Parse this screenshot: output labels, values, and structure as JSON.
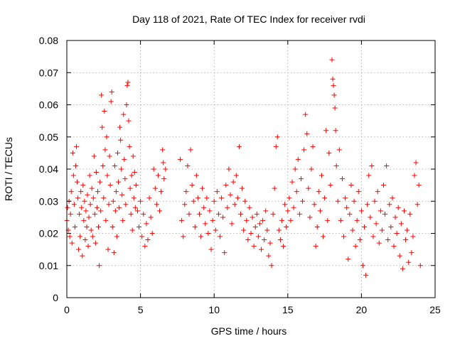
{
  "chart_data": {
    "type": "scatter",
    "title": "Day 118 of 2021, Rate Of TEC Index for receiver rvdi",
    "xlabel": "GPS time / hours",
    "ylabel": "ROTI / TECUs",
    "xlim": [
      0,
      25
    ],
    "ylim": [
      0,
      0.08
    ],
    "xticks": [
      0,
      5,
      10,
      15,
      20,
      25
    ],
    "yticks": [
      0,
      0.01,
      0.02,
      0.03,
      0.04,
      0.05,
      0.06,
      0.07,
      0.08
    ],
    "xtick_labels": [
      "0",
      "5",
      "10",
      "15",
      "20",
      "25"
    ],
    "ytick_labels": [
      "0",
      "0.01",
      "0.02",
      "0.03",
      "0.04",
      "0.05",
      "0.06",
      "0.07",
      "0.08"
    ],
    "grid": true,
    "marker": "+",
    "marker_color": "#ff0000",
    "series": [
      {
        "name": "ROTI",
        "description": "dense per-satellite ROTI samples; points below are a representative reading of the cloud",
        "points": [
          [
            0.0,
            0.024
          ],
          [
            0.05,
            0.028
          ],
          [
            0.1,
            0.021
          ],
          [
            0.15,
            0.03
          ],
          [
            0.2,
            0.019
          ],
          [
            0.25,
            0.026
          ],
          [
            0.3,
            0.033
          ],
          [
            0.35,
            0.017
          ],
          [
            0.4,
            0.045
          ],
          [
            0.45,
            0.038
          ],
          [
            0.5,
            0.029
          ],
          [
            0.55,
            0.022
          ],
          [
            0.6,
            0.041
          ],
          [
            0.65,
            0.047
          ],
          [
            0.7,
            0.036
          ],
          [
            0.75,
            0.031
          ],
          [
            0.8,
            0.015
          ],
          [
            0.85,
            0.026
          ],
          [
            0.9,
            0.019
          ],
          [
            0.95,
            0.033
          ],
          [
            1.0,
            0.028
          ],
          [
            1.05,
            0.013
          ],
          [
            1.1,
            0.035
          ],
          [
            1.15,
            0.024
          ],
          [
            1.2,
            0.03
          ],
          [
            1.25,
            0.018
          ],
          [
            1.3,
            0.027
          ],
          [
            1.35,
            0.022
          ],
          [
            1.4,
            0.032
          ],
          [
            1.45,
            0.016
          ],
          [
            1.5,
            0.025
          ],
          [
            1.55,
            0.038
          ],
          [
            1.6,
            0.029
          ],
          [
            1.65,
            0.021
          ],
          [
            1.7,
            0.034
          ],
          [
            1.75,
            0.019
          ],
          [
            1.8,
            0.031
          ],
          [
            1.85,
            0.044
          ],
          [
            1.9,
            0.026
          ],
          [
            1.95,
            0.017
          ],
          [
            2.0,
            0.039
          ],
          [
            2.05,
            0.028
          ],
          [
            2.1,
            0.033
          ],
          [
            2.15,
            0.022
          ],
          [
            2.2,
            0.01
          ],
          [
            2.25,
            0.036
          ],
          [
            2.3,
            0.027
          ],
          [
            2.35,
            0.063
          ],
          [
            2.4,
            0.053
          ],
          [
            2.45,
            0.041
          ],
          [
            2.5,
            0.031
          ],
          [
            2.55,
            0.058
          ],
          [
            2.6,
            0.046
          ],
          [
            2.65,
            0.024
          ],
          [
            2.7,
            0.05
          ],
          [
            2.75,
            0.038
          ],
          [
            2.8,
            0.015
          ],
          [
            2.85,
            0.029
          ],
          [
            2.9,
            0.044
          ],
          [
            2.95,
            0.035
          ],
          [
            3.0,
            0.061
          ],
          [
            3.05,
            0.064
          ],
          [
            3.1,
            0.022
          ],
          [
            3.15,
            0.03
          ],
          [
            3.2,
            0.014
          ],
          [
            3.25,
            0.041
          ],
          [
            3.3,
            0.027
          ],
          [
            3.35,
            0.033
          ],
          [
            3.4,
            0.019
          ],
          [
            3.45,
            0.045
          ],
          [
            3.5,
            0.036
          ],
          [
            3.55,
            0.028
          ],
          [
            3.6,
            0.053
          ],
          [
            3.65,
            0.049
          ],
          [
            3.7,
            0.04
          ],
          [
            3.75,
            0.032
          ],
          [
            3.8,
            0.024
          ],
          [
            3.85,
            0.057
          ],
          [
            3.9,
            0.043
          ],
          [
            3.95,
            0.037
          ],
          [
            4.0,
            0.029
          ],
          [
            4.05,
            0.06
          ],
          [
            4.1,
            0.066
          ],
          [
            4.15,
            0.067
          ],
          [
            4.2,
            0.055
          ],
          [
            4.25,
            0.047
          ],
          [
            4.3,
            0.034
          ],
          [
            4.35,
            0.026
          ],
          [
            4.4,
            0.038
          ],
          [
            4.45,
            0.021
          ],
          [
            4.5,
            0.044
          ],
          [
            4.55,
            0.031
          ],
          [
            4.6,
            0.039
          ],
          [
            4.65,
            0.028
          ],
          [
            4.7,
            0.035
          ],
          [
            4.8,
            0.027
          ],
          [
            4.9,
            0.022
          ],
          [
            5.0,
            0.03
          ],
          [
            5.1,
            0.019
          ],
          [
            5.2,
            0.026
          ],
          [
            5.3,
            0.016
          ],
          [
            5.4,
            0.023
          ],
          [
            5.5,
            0.018
          ],
          [
            5.6,
            0.031
          ],
          [
            5.7,
            0.025
          ],
          [
            5.8,
            0.02
          ],
          [
            5.9,
            0.04
          ],
          [
            6.0,
            0.034
          ],
          [
            6.1,
            0.029
          ],
          [
            6.2,
            0.038
          ],
          [
            6.3,
            0.027
          ],
          [
            6.4,
            0.033
          ],
          [
            6.5,
            0.046
          ],
          [
            6.55,
            0.042
          ],
          [
            6.6,
            0.037
          ],
          [
            6.7,
            0.04
          ],
          [
            7.7,
            0.043
          ],
          [
            7.8,
            0.024
          ],
          [
            7.9,
            0.019
          ],
          [
            8.0,
            0.029
          ],
          [
            8.1,
            0.033
          ],
          [
            8.2,
            0.041
          ],
          [
            8.3,
            0.026
          ],
          [
            8.4,
            0.046
          ],
          [
            8.5,
            0.035
          ],
          [
            8.6,
            0.03
          ],
          [
            8.7,
            0.022
          ],
          [
            8.8,
            0.038
          ],
          [
            8.9,
            0.031
          ],
          [
            9.0,
            0.026
          ],
          [
            9.1,
            0.019
          ],
          [
            9.2,
            0.034
          ],
          [
            9.3,
            0.028
          ],
          [
            9.4,
            0.023
          ],
          [
            9.5,
            0.031
          ],
          [
            9.6,
            0.02
          ],
          [
            9.7,
            0.027
          ],
          [
            9.8,
            0.015
          ],
          [
            9.9,
            0.024
          ],
          [
            10.0,
            0.03
          ],
          [
            10.1,
            0.021
          ],
          [
            10.2,
            0.033
          ],
          [
            10.3,
            0.026
          ],
          [
            10.4,
            0.019
          ],
          [
            10.5,
            0.031
          ],
          [
            10.6,
            0.025
          ],
          [
            10.7,
            0.014
          ],
          [
            10.8,
            0.035
          ],
          [
            10.9,
            0.028
          ],
          [
            11.0,
            0.04
          ],
          [
            11.1,
            0.032
          ],
          [
            11.2,
            0.023
          ],
          [
            11.3,
            0.036
          ],
          [
            11.4,
            0.029
          ],
          [
            11.5,
            0.038
          ],
          [
            11.6,
            0.031
          ],
          [
            11.7,
            0.047
          ],
          [
            11.8,
            0.026
          ],
          [
            11.9,
            0.034
          ],
          [
            12.0,
            0.021
          ],
          [
            12.1,
            0.03
          ],
          [
            12.2,
            0.024
          ],
          [
            12.3,
            0.018
          ],
          [
            12.4,
            0.028
          ],
          [
            12.5,
            0.02
          ],
          [
            12.6,
            0.025
          ],
          [
            12.7,
            0.016
          ],
          [
            12.8,
            0.022
          ],
          [
            12.9,
            0.026
          ],
          [
            13.0,
            0.019
          ],
          [
            13.1,
            0.023
          ],
          [
            13.2,
            0.015
          ],
          [
            13.3,
            0.024
          ],
          [
            13.4,
            0.018
          ],
          [
            13.5,
            0.027
          ],
          [
            13.6,
            0.021
          ],
          [
            13.7,
            0.013
          ],
          [
            13.8,
            0.017
          ],
          [
            13.9,
            0.01
          ],
          [
            14.0,
            0.026
          ],
          [
            14.1,
            0.034
          ],
          [
            14.2,
            0.047
          ],
          [
            14.3,
            0.05
          ],
          [
            14.4,
            0.021
          ],
          [
            14.5,
            0.018
          ],
          [
            14.6,
            0.024
          ],
          [
            14.7,
            0.016
          ],
          [
            14.8,
            0.029
          ],
          [
            14.9,
            0.022
          ],
          [
            15.0,
            0.027
          ],
          [
            15.1,
            0.031
          ],
          [
            15.2,
            0.024
          ],
          [
            15.3,
            0.036
          ],
          [
            15.4,
            0.028
          ],
          [
            15.5,
            0.04
          ],
          [
            15.6,
            0.033
          ],
          [
            15.7,
            0.043
          ],
          [
            15.8,
            0.026
          ],
          [
            15.9,
            0.037
          ],
          [
            16.0,
            0.03
          ],
          [
            16.1,
            0.046
          ],
          [
            16.2,
            0.057
          ],
          [
            16.3,
            0.051
          ],
          [
            16.4,
            0.034
          ],
          [
            16.5,
            0.025
          ],
          [
            16.6,
            0.04
          ],
          [
            16.7,
            0.047
          ],
          [
            16.8,
            0.029
          ],
          [
            16.9,
            0.016
          ],
          [
            17.0,
            0.022
          ],
          [
            17.1,
            0.033
          ],
          [
            17.2,
            0.027
          ],
          [
            17.3,
            0.038
          ],
          [
            17.4,
            0.019
          ],
          [
            17.5,
            0.031
          ],
          [
            17.6,
            0.052
          ],
          [
            17.7,
            0.024
          ],
          [
            17.8,
            0.045
          ],
          [
            17.9,
            0.035
          ],
          [
            18.0,
            0.074
          ],
          [
            18.05,
            0.068
          ],
          [
            18.1,
            0.066
          ],
          [
            18.15,
            0.063
          ],
          [
            18.2,
            0.059
          ],
          [
            18.25,
            0.052
          ],
          [
            18.3,
            0.041
          ],
          [
            18.4,
            0.03
          ],
          [
            18.5,
            0.046
          ],
          [
            18.6,
            0.024
          ],
          [
            18.7,
            0.037
          ],
          [
            18.8,
            0.019
          ],
          [
            18.9,
            0.031
          ],
          [
            19.0,
            0.028
          ],
          [
            19.1,
            0.012
          ],
          [
            19.2,
            0.026
          ],
          [
            19.3,
            0.035
          ],
          [
            19.4,
            0.021
          ],
          [
            19.5,
            0.03
          ],
          [
            19.6,
            0.016
          ],
          [
            19.7,
            0.024
          ],
          [
            19.8,
            0.033
          ],
          [
            19.9,
            0.018
          ],
          [
            20.0,
            0.027
          ],
          [
            20.1,
            0.01
          ],
          [
            20.2,
            0.022
          ],
          [
            20.3,
            0.007
          ],
          [
            20.4,
            0.029
          ],
          [
            20.5,
            0.038
          ],
          [
            20.6,
            0.025
          ],
          [
            20.7,
            0.041
          ],
          [
            20.8,
            0.019
          ],
          [
            20.9,
            0.03
          ],
          [
            21.0,
            0.023
          ],
          [
            21.1,
            0.033
          ],
          [
            21.2,
            0.017
          ],
          [
            21.3,
            0.027
          ],
          [
            21.4,
            0.021
          ],
          [
            21.5,
            0.035
          ],
          [
            21.6,
            0.026
          ],
          [
            21.7,
            0.041
          ],
          [
            21.8,
            0.018
          ],
          [
            21.9,
            0.029
          ],
          [
            22.0,
            0.022
          ],
          [
            22.1,
            0.031
          ],
          [
            22.2,
            0.016
          ],
          [
            22.3,
            0.025
          ],
          [
            22.4,
            0.02
          ],
          [
            22.5,
            0.028
          ],
          [
            22.6,
            0.013
          ],
          [
            22.7,
            0.023
          ],
          [
            22.8,
            0.009
          ],
          [
            22.9,
            0.027
          ],
          [
            23.0,
            0.018
          ],
          [
            23.1,
            0.021
          ],
          [
            23.2,
            0.011
          ],
          [
            23.3,
            0.026
          ],
          [
            23.4,
            0.014
          ],
          [
            23.5,
            0.019
          ],
          [
            23.6,
            0.038
          ],
          [
            23.7,
            0.042
          ],
          [
            23.8,
            0.029
          ],
          [
            23.9,
            0.035
          ],
          [
            24.0,
            0.01
          ]
        ]
      }
    ]
  }
}
